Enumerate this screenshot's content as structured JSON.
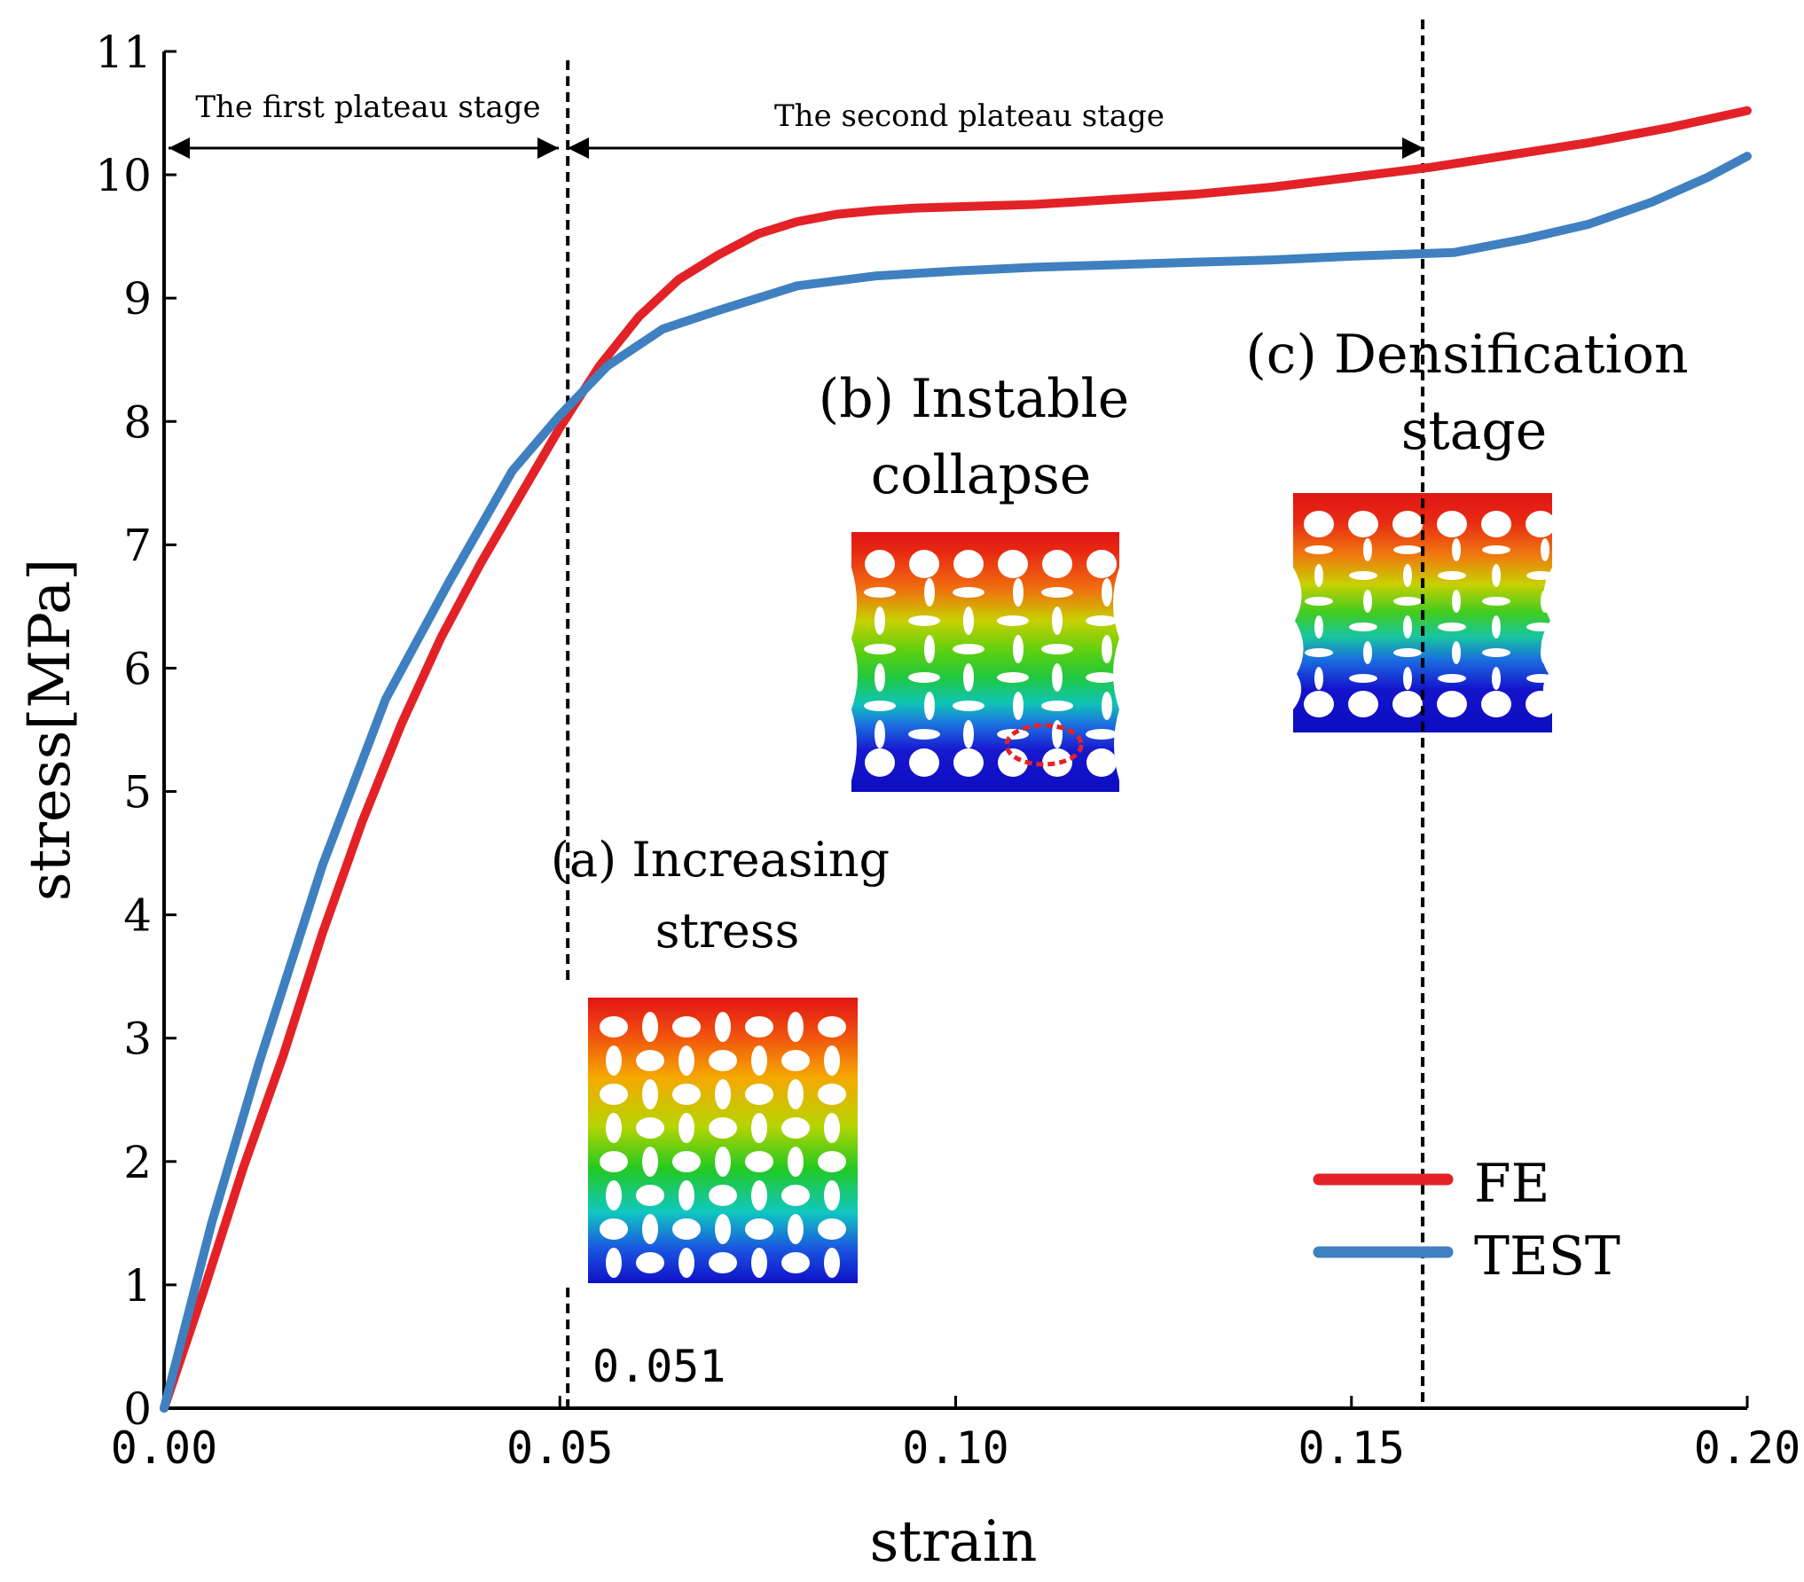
{
  "chart_data": {
    "type": "line",
    "title": "",
    "xlabel": "strain",
    "ylabel": "stress[MPa]",
    "xlim": [
      0,
      0.2
    ],
    "ylim": [
      0,
      11
    ],
    "x_ticks": [
      0,
      0.05,
      0.1,
      0.15,
      0.2
    ],
    "x_tick_labels": [
      "0.00",
      "0.05",
      "0.10",
      "0.15",
      "0.20"
    ],
    "y_ticks": [
      0,
      1,
      2,
      3,
      4,
      5,
      6,
      7,
      8,
      9,
      10,
      11
    ],
    "y_tick_labels": [
      "0",
      "1",
      "2",
      "3",
      "4",
      "5",
      "6",
      "7",
      "8",
      "9",
      "10",
      "11"
    ],
    "grid": false,
    "legend_position": "bottom-right",
    "series": [
      {
        "name": "FE",
        "color": "#e32228",
        "x": [
          0,
          0.005,
          0.01,
          0.015,
          0.02,
          0.025,
          0.03,
          0.035,
          0.04,
          0.045,
          0.05,
          0.055,
          0.06,
          0.065,
          0.07,
          0.075,
          0.08,
          0.085,
          0.09,
          0.095,
          0.1,
          0.105,
          0.11,
          0.115,
          0.12,
          0.13,
          0.14,
          0.15,
          0.16,
          0.17,
          0.18,
          0.19,
          0.2
        ],
        "y": [
          0,
          0.95,
          1.95,
          2.85,
          3.85,
          4.75,
          5.55,
          6.25,
          6.85,
          7.4,
          7.95,
          8.45,
          8.85,
          9.15,
          9.35,
          9.52,
          9.62,
          9.68,
          9.71,
          9.73,
          9.74,
          9.75,
          9.76,
          9.78,
          9.8,
          9.84,
          9.9,
          9.98,
          10.06,
          10.16,
          10.26,
          10.38,
          10.52
        ]
      },
      {
        "name": "TEST",
        "color": "#3f80c0",
        "x": [
          0,
          0.006,
          0.012,
          0.02,
          0.028,
          0.036,
          0.044,
          0.05,
          0.056,
          0.063,
          0.07,
          0.08,
          0.09,
          0.1,
          0.11,
          0.12,
          0.13,
          0.14,
          0.15,
          0.163,
          0.172,
          0.18,
          0.188,
          0.195,
          0.2
        ],
        "y": [
          0,
          1.5,
          2.8,
          4.4,
          5.75,
          6.7,
          7.6,
          8.05,
          8.45,
          8.75,
          8.9,
          9.1,
          9.18,
          9.22,
          9.25,
          9.27,
          9.29,
          9.31,
          9.34,
          9.37,
          9.48,
          9.6,
          9.78,
          9.98,
          10.15
        ]
      }
    ],
    "annotations": {
      "stage1": "The first plateau stage",
      "stage2": "The second plateau stage",
      "label_a_line1": "(a) Increasing",
      "label_a_line2": "stress",
      "label_b_line1": "(b) Instable",
      "label_b_line2": "collapse",
      "label_c_line1": "(c) Densification",
      "label_c_line2": "stage",
      "strain_marker": "0.051"
    },
    "vertical_lines_x": [
      0.051,
      0.159
    ]
  }
}
